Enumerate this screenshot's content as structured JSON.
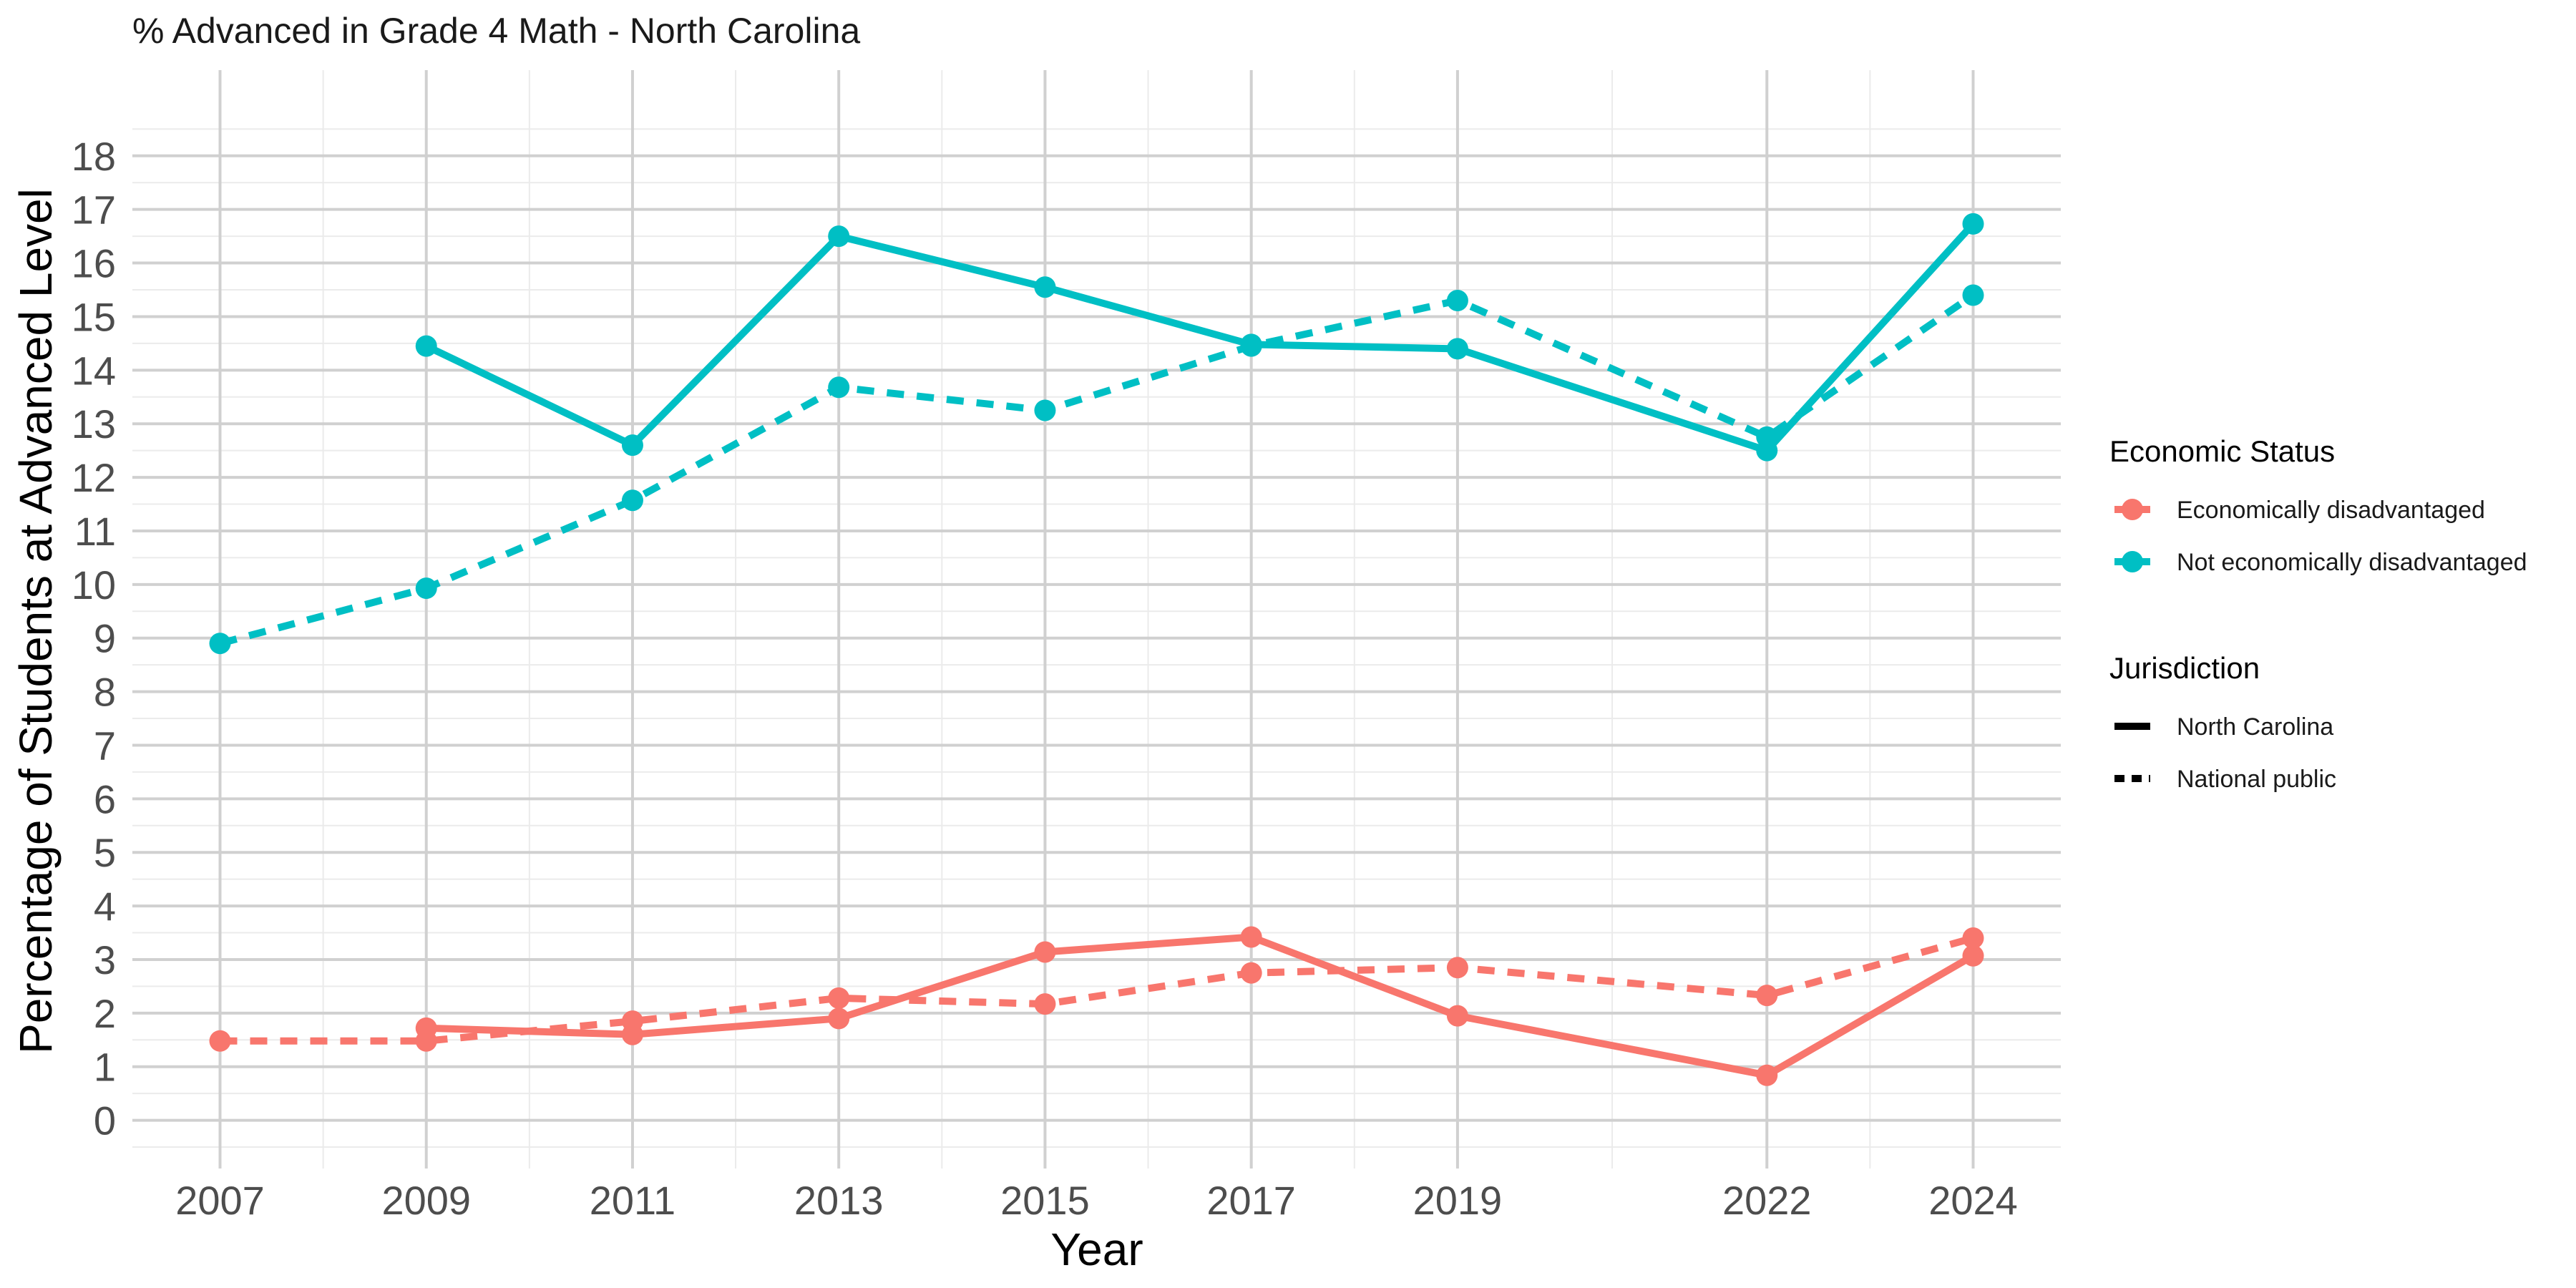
{
  "chart_data": {
    "type": "line",
    "title": "% Advanced in Grade 4 Math - North Carolina",
    "xlabel": "Year",
    "ylabel": "Percentage of Students at Advanced Level",
    "x_ticks": [
      2007,
      2009,
      2011,
      2013,
      2015,
      2017,
      2019,
      2022,
      2024
    ],
    "xlim": [
      2006.15,
      2024.85
    ],
    "y_ticks": [
      0,
      1,
      2,
      3,
      4,
      5,
      6,
      7,
      8,
      9,
      10,
      11,
      12,
      13,
      14,
      15,
      16,
      17,
      18
    ],
    "ylim": [
      -0.9,
      19.6
    ],
    "grid": true,
    "legend_position": "right",
    "legend": {
      "color_title": "Economic Status",
      "color_entries": [
        {
          "label": "Economically disadvantaged",
          "color": "#F8766D"
        },
        {
          "label": "Not economically disadvantaged",
          "color": "#00BFC4"
        }
      ],
      "linetype_title": "Jurisdiction",
      "linetype_entries": [
        {
          "label": "North Carolina",
          "dash": "solid"
        },
        {
          "label": "National public",
          "dash": "dashed"
        }
      ]
    },
    "series": [
      {
        "status": "Not economically disadvantaged",
        "jurisdiction": "North Carolina",
        "color": "#00BFC4",
        "dash": "solid",
        "points": [
          [
            2009,
            14.45
          ],
          [
            2011,
            12.6
          ],
          [
            2013,
            16.5
          ],
          [
            2015,
            15.55
          ],
          [
            2017,
            14.48
          ],
          [
            2019,
            14.4
          ],
          [
            2022,
            12.5
          ],
          [
            2024,
            16.73
          ]
        ]
      },
      {
        "status": "Not economically disadvantaged",
        "jurisdiction": "National public",
        "color": "#00BFC4",
        "dash": "dashed",
        "points": [
          [
            2007,
            8.9
          ],
          [
            2009,
            9.93
          ],
          [
            2011,
            11.57
          ],
          [
            2013,
            13.68
          ],
          [
            2015,
            13.25
          ],
          [
            2017,
            14.45
          ],
          [
            2019,
            15.3
          ],
          [
            2022,
            12.75
          ],
          [
            2024,
            15.4
          ]
        ]
      },
      {
        "status": "Economically disadvantaged",
        "jurisdiction": "North Carolina",
        "color": "#F8766D",
        "dash": "solid",
        "points": [
          [
            2009,
            1.72
          ],
          [
            2011,
            1.6
          ],
          [
            2013,
            1.9
          ],
          [
            2015,
            3.14
          ],
          [
            2017,
            3.42
          ],
          [
            2019,
            1.95
          ],
          [
            2022,
            0.84
          ],
          [
            2024,
            3.07
          ]
        ]
      },
      {
        "status": "Economically disadvantaged",
        "jurisdiction": "National public",
        "color": "#F8766D",
        "dash": "dashed",
        "points": [
          [
            2007,
            1.48
          ],
          [
            2009,
            1.48
          ],
          [
            2011,
            1.85
          ],
          [
            2013,
            2.28
          ],
          [
            2015,
            2.17
          ],
          [
            2017,
            2.75
          ],
          [
            2019,
            2.85
          ],
          [
            2022,
            2.33
          ],
          [
            2024,
            3.4
          ]
        ]
      }
    ]
  }
}
